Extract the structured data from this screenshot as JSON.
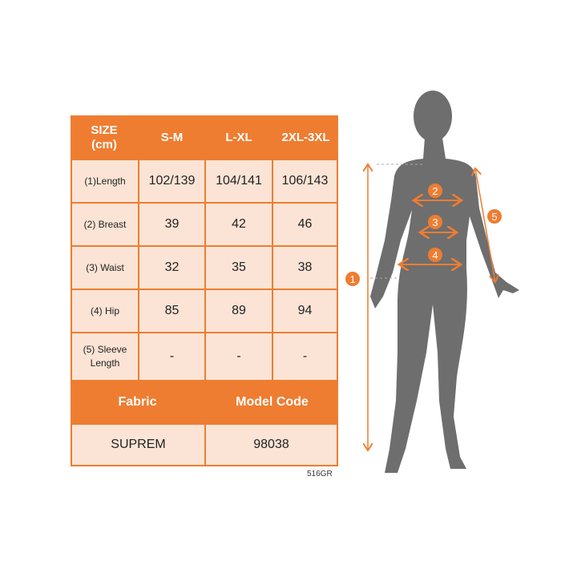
{
  "table": {
    "header": [
      "SIZE\n(cm)",
      "S-M",
      "L-XL",
      "2XL-3XL"
    ],
    "rows": [
      {
        "label": "(1)Length",
        "values": [
          "102/139",
          "104/141",
          "106/143"
        ]
      },
      {
        "label": "(2) Breast",
        "values": [
          "39",
          "42",
          "46"
        ]
      },
      {
        "label": "(3) Waist",
        "values": [
          "32",
          "35",
          "38"
        ]
      },
      {
        "label": "(4) Hip",
        "values": [
          "85",
          "89",
          "94"
        ]
      },
      {
        "label": "(5) Sleeve Length",
        "values": [
          "-",
          "-",
          "-"
        ]
      }
    ],
    "footer_header": [
      "Fabric",
      "Model Code"
    ],
    "footer_values": [
      "SUPREM",
      "98038"
    ]
  },
  "product_code": "516GR",
  "markers": [
    "1",
    "2",
    "3",
    "4",
    "5"
  ],
  "colors": {
    "accent": "#ee7d31",
    "cell": "#fbe4d5",
    "silhouette": "#6e6e6e"
  }
}
